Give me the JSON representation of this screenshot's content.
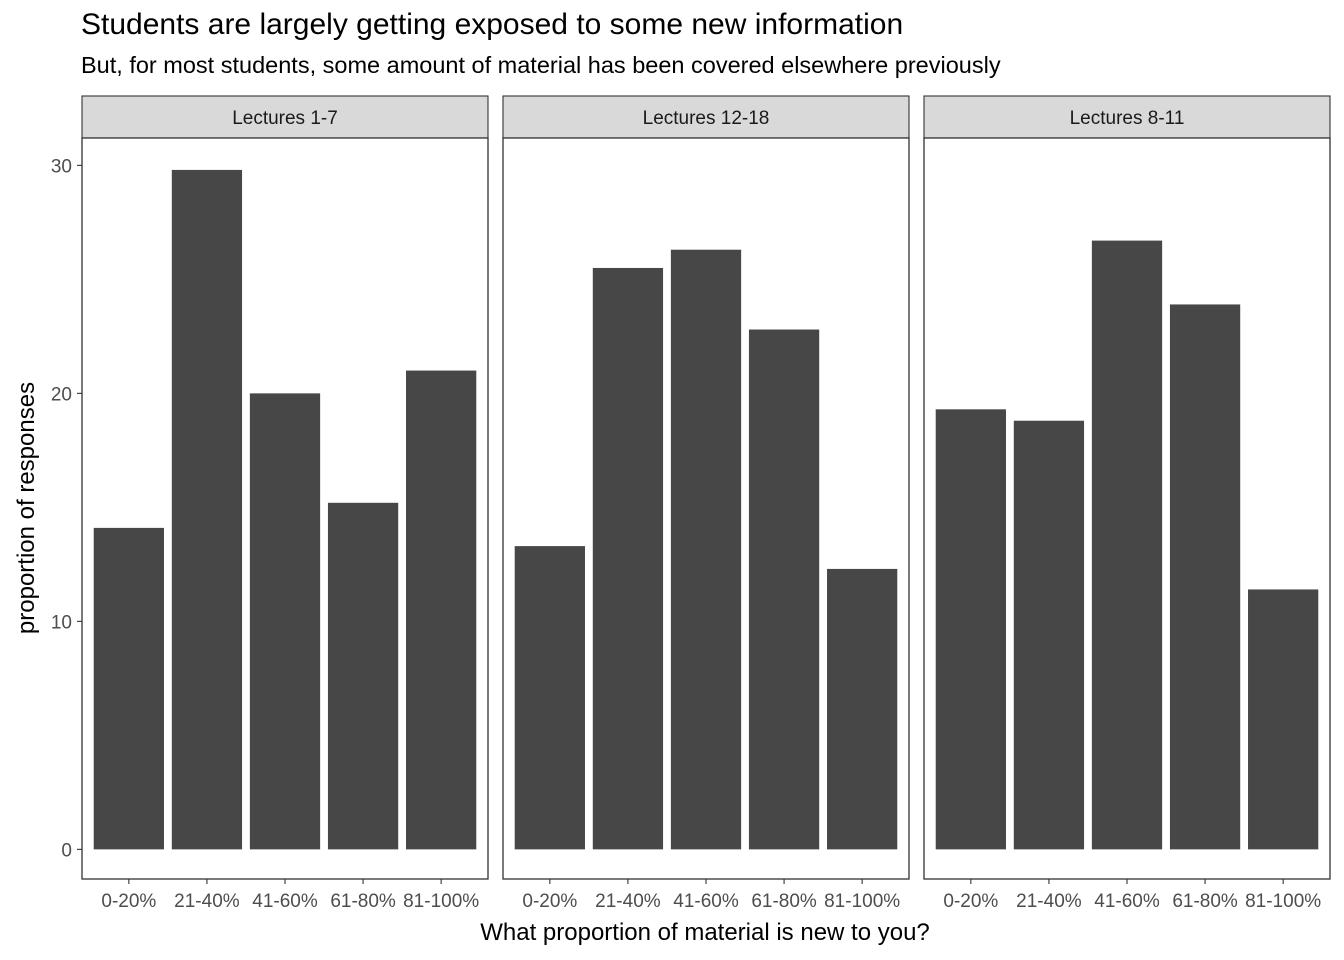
{
  "chart_data": {
    "type": "bar",
    "title": "Students are largely getting exposed to some new information",
    "subtitle": "But, for most students, some amount of material has been covered elsewhere previously",
    "xlabel": "What proportion of material is new to you?",
    "ylabel": "proportion of responses",
    "categories": [
      "0-20%",
      "21-40%",
      "41-60%",
      "61-80%",
      "81-100%"
    ],
    "ylim": [
      -1.3,
      31.2
    ],
    "yticks": [
      0,
      10,
      20,
      30
    ],
    "grid": false,
    "bar_color": "#474747",
    "panels": [
      {
        "label": "Lectures 1-7",
        "values": [
          14.1,
          29.8,
          20.0,
          15.2,
          21.0
        ]
      },
      {
        "label": "Lectures 12-18",
        "values": [
          13.3,
          25.5,
          26.3,
          22.8,
          12.3
        ]
      },
      {
        "label": "Lectures 8-11",
        "values": [
          19.3,
          18.8,
          26.7,
          23.9,
          11.4
        ]
      }
    ]
  }
}
